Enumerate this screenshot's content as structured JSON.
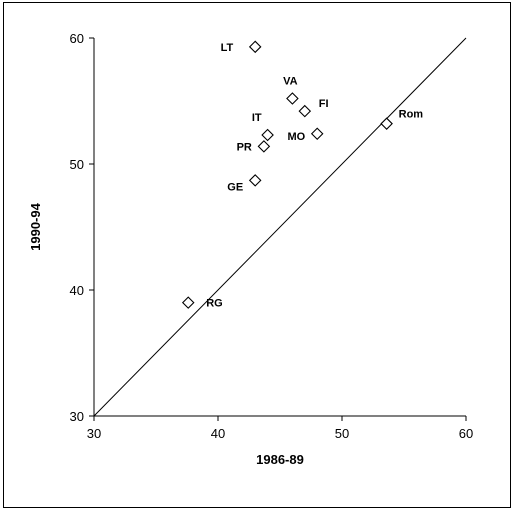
{
  "chart_data": {
    "type": "scatter",
    "title": "",
    "xlabel": "1986-89",
    "ylabel": "1990-94",
    "xlim": [
      30,
      60
    ],
    "ylim": [
      30,
      60
    ],
    "xticks": [
      "30",
      "40",
      "50",
      "60"
    ],
    "yticks": [
      "30",
      "40",
      "50",
      "60"
    ],
    "grid": false,
    "reference_line": "y = x",
    "marker": "open-diamond",
    "points": [
      {
        "label": "LT",
        "x": 43.0,
        "y": 59.3
      },
      {
        "label": "VA",
        "x": 46.0,
        "y": 55.2
      },
      {
        "label": "FI",
        "x": 47.0,
        "y": 54.2
      },
      {
        "label": "IT",
        "x": 44.0,
        "y": 52.3
      },
      {
        "label": "PR",
        "x": 43.7,
        "y": 51.4
      },
      {
        "label": "MO",
        "x": 48.0,
        "y": 52.4
      },
      {
        "label": "GE",
        "x": 43.0,
        "y": 48.7
      },
      {
        "label": "Rom",
        "x": 53.6,
        "y": 53.2
      },
      {
        "label": "RG",
        "x": 37.6,
        "y": 39.0
      }
    ]
  }
}
